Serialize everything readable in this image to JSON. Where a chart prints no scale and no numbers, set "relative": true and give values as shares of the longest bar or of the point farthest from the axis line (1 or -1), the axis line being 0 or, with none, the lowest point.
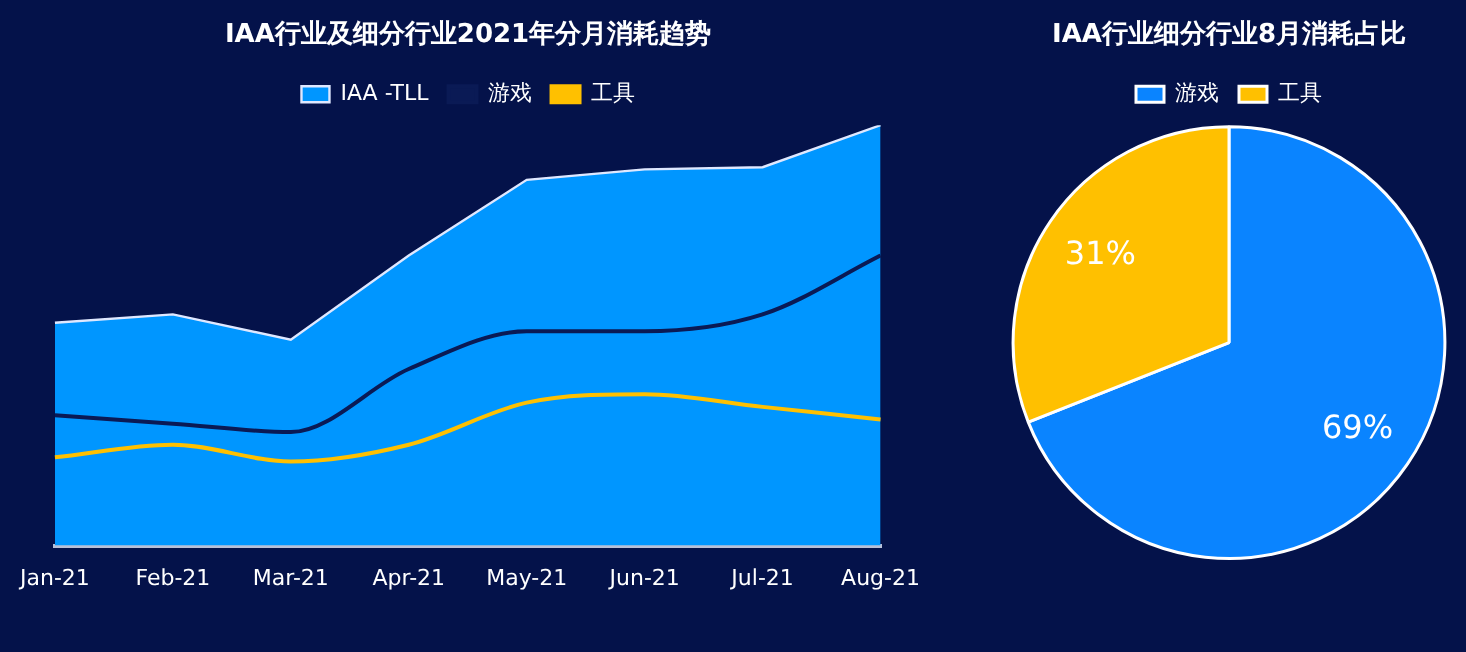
{
  "chart_data": [
    {
      "type": "area",
      "title": "IAA行业及细分行业2021年分月消耗趋势",
      "relative": true,
      "legend": "top",
      "grid": false,
      "marker": "none",
      "categories": [
        "Jan-21",
        "Feb-21",
        "Mar-21",
        "Apr-21",
        "May-21",
        "Jun-21",
        "Jul-21",
        "Aug-21"
      ],
      "series": [
        {
          "name": "IAA -TLL",
          "type": "area",
          "color": "#0096ff",
          "values": [
            0.53,
            0.55,
            0.49,
            0.69,
            0.87,
            0.895,
            0.9,
            1
          ]
        },
        {
          "name": "游戏",
          "type": "line",
          "color": "#0a1a55",
          "values": [
            0.31,
            0.29,
            0.27,
            0.42,
            0.51,
            0.51,
            0.55,
            0.69
          ]
        },
        {
          "name": "工具",
          "type": "line",
          "color": "#ffc000",
          "values": [
            0.21,
            0.24,
            0.2,
            0.24,
            0.34,
            0.36,
            0.33,
            0.3
          ]
        }
      ]
    },
    {
      "type": "pie",
      "title": "IAA行业细分行业8月消耗占比",
      "legend": "top",
      "value_labels": [
        "69%",
        "31%"
      ],
      "categories": [
        "游戏",
        "工具"
      ],
      "values": [
        69,
        31
      ],
      "colors": [
        "#0a84ff",
        "#ffc000"
      ]
    }
  ]
}
